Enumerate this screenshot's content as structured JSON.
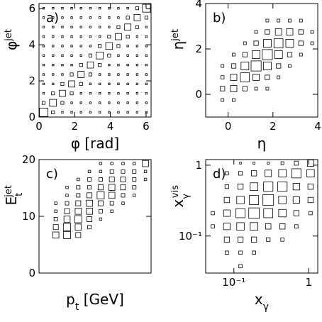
{
  "chart_data": [
    {
      "type": "box2d",
      "panel": "a)",
      "xlabel": {
        "text": "φ [rad]"
      },
      "ylabel": {
        "text": "φ",
        "sup": "jet"
      },
      "xlim": [
        0,
        6.28
      ],
      "ylim": [
        0,
        6.28
      ],
      "xticks": [
        0,
        2,
        4,
        6
      ],
      "yticks": [
        0,
        2,
        4,
        6
      ],
      "xbins": [
        0,
        0.52,
        1.05,
        1.57,
        2.09,
        2.62,
        3.14,
        3.67,
        4.19,
        4.71,
        5.24,
        5.76,
        6.28
      ],
      "ybins": [
        0,
        0.52,
        1.05,
        1.57,
        2.09,
        2.62,
        3.14,
        3.67,
        4.19,
        4.71,
        5.24,
        5.76,
        6.28
      ],
      "z": [
        [
          9,
          1.2,
          0.4,
          0.4,
          0.4,
          0.4,
          0.4,
          0.4,
          0.4,
          0.4,
          0.4,
          0.4
        ],
        [
          1.2,
          6,
          1.2,
          0.4,
          0.4,
          0.4,
          0.4,
          0.4,
          0.4,
          0.4,
          0.4,
          0.4
        ],
        [
          0.4,
          1.2,
          5,
          1.2,
          0.4,
          0.4,
          0.4,
          0.4,
          0.4,
          0.4,
          0.4,
          0.4
        ],
        [
          0.4,
          0.4,
          1.2,
          5,
          1.2,
          0.4,
          0.4,
          0.4,
          0.4,
          0.4,
          0.4,
          0.4
        ],
        [
          0.4,
          0.4,
          0.4,
          1.2,
          5,
          1.2,
          0.4,
          0.4,
          0.4,
          0.4,
          0.4,
          0.4
        ],
        [
          0.4,
          0.4,
          0.4,
          0.4,
          1.2,
          5,
          1.2,
          0.4,
          0.4,
          0.4,
          0.4,
          0.4
        ],
        [
          0.4,
          0.4,
          0.4,
          0.4,
          0.4,
          1.2,
          6,
          1.2,
          0.4,
          0.4,
          0.4,
          0.4
        ],
        [
          0.4,
          0.4,
          0.4,
          0.4,
          0.4,
          0.4,
          1.2,
          6,
          1.2,
          0.4,
          0.4,
          0.4
        ],
        [
          0.4,
          0.4,
          0.4,
          0.4,
          0.4,
          0.4,
          0.4,
          1.2,
          5,
          1.2,
          0.4,
          0.4
        ],
        [
          0.4,
          0.4,
          0.4,
          0.4,
          0.4,
          0.4,
          0.4,
          0.4,
          1.2,
          5,
          1.2,
          0.4
        ],
        [
          0.4,
          0.4,
          0.4,
          0.4,
          0.4,
          0.4,
          0.4,
          0.4,
          0.4,
          1.2,
          5,
          1.2
        ],
        [
          0.4,
          0.4,
          0.4,
          0.4,
          0.4,
          0.4,
          0.4,
          0.4,
          0.4,
          0.4,
          1.2,
          8
        ]
      ]
    },
    {
      "type": "box2d",
      "panel": "b)",
      "xlabel": {
        "text": "η"
      },
      "ylabel": {
        "text": "η",
        "sup": "jet"
      },
      "xlim": [
        -1,
        4
      ],
      "ylim": [
        -1,
        4
      ],
      "xticks": [
        0,
        2,
        4
      ],
      "yticks": [
        0,
        2,
        4
      ],
      "xbins": [
        -1,
        -0.5,
        0,
        0.5,
        1,
        1.5,
        2,
        2.5,
        3,
        3.5,
        4
      ],
      "ybins": [
        -1,
        -0.5,
        0,
        0.5,
        1,
        1.5,
        2,
        2.5,
        3,
        3.5,
        4
      ],
      "z": [
        [
          0,
          0,
          0,
          0,
          0,
          0,
          0,
          0,
          0,
          0
        ],
        [
          0,
          0.4,
          0.4,
          0,
          0,
          0,
          0,
          0,
          0,
          0
        ],
        [
          0,
          1,
          2,
          1,
          0.4,
          0.4,
          0,
          0,
          0,
          0
        ],
        [
          0,
          0.5,
          2,
          4,
          2,
          1,
          0.4,
          0,
          0,
          0
        ],
        [
          0,
          0.4,
          1,
          3,
          5,
          3,
          1,
          0.4,
          0,
          0
        ],
        [
          0,
          0,
          0.4,
          1,
          3,
          5,
          3,
          1,
          0.4,
          0
        ],
        [
          0,
          0,
          0,
          0.4,
          1,
          3,
          4,
          3,
          1,
          0.4
        ],
        [
          0,
          0,
          0,
          0,
          0.4,
          1,
          2,
          2,
          1,
          0.4
        ],
        [
          0,
          0,
          0,
          0,
          0,
          0.4,
          0.4,
          0.4,
          0.4,
          0
        ],
        [
          0,
          0,
          0,
          0,
          0,
          0,
          0,
          0,
          0,
          0
        ]
      ]
    },
    {
      "type": "box2d",
      "panel": "c)",
      "xlabel": {
        "text": "p",
        "sub": "t",
        "after": " [GeV]"
      },
      "ylabel": {
        "text": "E",
        "sub": "t",
        "sup": "jet"
      },
      "xlim": [
        0,
        20
      ],
      "ylim": [
        0,
        20
      ],
      "yticks": [
        0,
        10,
        20
      ],
      "xbins": [
        2,
        4,
        6,
        8,
        10,
        12,
        14,
        16,
        18,
        20
      ],
      "ybins": [
        6,
        7.4,
        8.8,
        10.2,
        11.6,
        13,
        14.4,
        15.8,
        17.2,
        18.6,
        20
      ],
      "z": [
        [
          3,
          4,
          2,
          0,
          0,
          0,
          0,
          0,
          0
        ],
        [
          2,
          4,
          3,
          1,
          0,
          0,
          0,
          0,
          0
        ],
        [
          1,
          3,
          4,
          2,
          0.5,
          0,
          0,
          0,
          0
        ],
        [
          0.5,
          2,
          3,
          3,
          1,
          0.5,
          0,
          0,
          0
        ],
        [
          0.5,
          1,
          2,
          3,
          2,
          1,
          0.5,
          0,
          0
        ],
        [
          0,
          0.5,
          1,
          2,
          4,
          3,
          1,
          0.5,
          0
        ],
        [
          0,
          0.5,
          1,
          1,
          2,
          3,
          2,
          1,
          0
        ],
        [
          0,
          0,
          0.5,
          1,
          1,
          2,
          2,
          1,
          0.5
        ],
        [
          0,
          0,
          0,
          0.5,
          0.5,
          1,
          1,
          1,
          0.5
        ],
        [
          0,
          0,
          0,
          0,
          0.5,
          0.5,
          0.5,
          0.5,
          3
        ]
      ]
    },
    {
      "type": "box2d",
      "panel": "d)",
      "xlabel": {
        "text": "x",
        "sub": "γ"
      },
      "ylabel": {
        "text": "x",
        "sub": "γ",
        "sup": "vis"
      },
      "xlog": true,
      "ylog": true,
      "xlim": [
        0.042,
        1.32
      ],
      "ylim": [
        0.03,
        1.2
      ],
      "xticks": [
        {
          "value": 0.1,
          "label": "10⁻¹"
        },
        1
      ],
      "yticks": [
        {
          "value": 0.1,
          "label": "10⁻¹"
        },
        1
      ],
      "xbins": [
        0.042,
        0.065,
        0.1,
        0.15,
        0.23,
        0.36,
        0.55,
        0.85,
        1.32
      ],
      "ybins": [
        0.03,
        0.047,
        0.072,
        0.11,
        0.17,
        0.26,
        0.4,
        0.62,
        0.95,
        1.2
      ],
      "z": [
        [
          0,
          0,
          0.4,
          0,
          0,
          0,
          0,
          0
        ],
        [
          0,
          0.4,
          0.4,
          0.4,
          0,
          0,
          0,
          0
        ],
        [
          0,
          1,
          1,
          1,
          0.5,
          0.4,
          0,
          0
        ],
        [
          0.4,
          1.5,
          2,
          2,
          1,
          1,
          0.4,
          0
        ],
        [
          0.4,
          1.5,
          3,
          4,
          3,
          2,
          1,
          0.4
        ],
        [
          0,
          1,
          2,
          3,
          4,
          2,
          1.5,
          1
        ],
        [
          0,
          0.5,
          1,
          2,
          3,
          3,
          1.5,
          1
        ],
        [
          0,
          0.4,
          0.5,
          1,
          1.5,
          2,
          3,
          2
        ],
        [
          0,
          0,
          0.4,
          0.5,
          0.5,
          1,
          2,
          5
        ]
      ]
    }
  ]
}
